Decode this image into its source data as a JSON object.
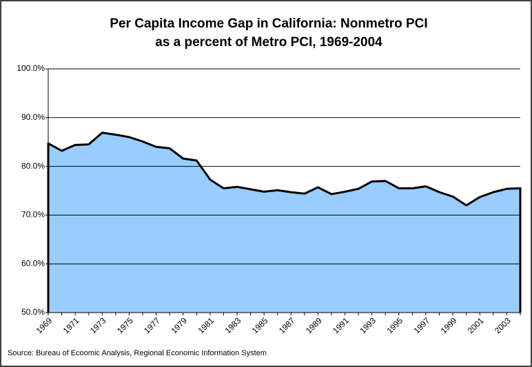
{
  "chart_data": {
    "type": "area",
    "title": [
      "Per Capita Income Gap in California: Nonmetro PCI",
      "as a percent of Metro PCI, 1969-2004"
    ],
    "source": "Source: Bureau of Ecoomic Analysis, Regional Economic Information System",
    "categories": [
      "1969",
      null,
      "1971",
      null,
      "1973",
      null,
      "1975",
      null,
      "1977",
      null,
      "1979",
      null,
      "1981",
      null,
      "1983",
      null,
      "1985",
      null,
      "1987",
      null,
      "1989",
      null,
      "1991",
      null,
      "1993",
      null,
      "1995",
      null,
      "1997",
      null,
      "1999",
      null,
      "2001",
      null,
      "2003",
      null
    ],
    "values": [
      84.7,
      83.2,
      84.4,
      84.5,
      86.9,
      86.5,
      86.0,
      85.1,
      84.0,
      83.7,
      81.6,
      81.2,
      77.3,
      75.5,
      75.8,
      75.3,
      74.8,
      75.1,
      74.7,
      74.4,
      75.7,
      74.3,
      74.8,
      75.4,
      76.9,
      77.0,
      75.5,
      75.5,
      75.9,
      74.7,
      73.8,
      72.0,
      73.7,
      74.7,
      75.4,
      75.5
    ],
    "color": "#99ccff",
    "ylim": [
      50,
      100
    ],
    "yticks": [
      {
        "value": 50,
        "label": "50.0%"
      },
      {
        "value": 60,
        "label": "60.0%"
      },
      {
        "value": 70,
        "label": "70.0%"
      },
      {
        "value": 80,
        "label": "80.0%"
      },
      {
        "value": 90,
        "label": "90.0%"
      },
      {
        "value": 100,
        "label": "100.0%"
      }
    ],
    "grid": true
  }
}
